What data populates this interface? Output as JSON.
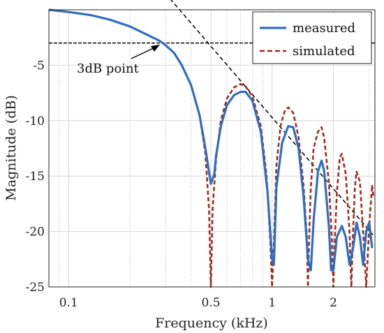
{
  "chart_data": {
    "type": "line",
    "xlabel": "Frequency (kHz)",
    "ylabel": "Magnitude (dB)",
    "xscale": "log",
    "xlim": [
      0.08,
      3.2
    ],
    "ylim": [
      -25,
      0
    ],
    "xticks": [
      {
        "value": 0.1,
        "label": "0.1"
      },
      {
        "value": 0.5,
        "label": "0.5"
      },
      {
        "value": 1,
        "label": "1"
      },
      {
        "value": 2,
        "label": "2"
      }
    ],
    "yticks": [
      {
        "value": -5,
        "label": "-5"
      },
      {
        "value": -10,
        "label": "-10"
      },
      {
        "value": -15,
        "label": "-15"
      },
      {
        "value": -20,
        "label": "-20"
      },
      {
        "value": -25,
        "label": "-25"
      }
    ],
    "grid": true,
    "legend": {
      "position": "top-right",
      "entries": [
        {
          "name": "measured",
          "color": "#2f6ec1",
          "style": "solid"
        },
        {
          "name": "simulated",
          "color": "#a02c1e",
          "style": "dashed"
        }
      ]
    },
    "series": [
      {
        "name": "measured",
        "color": "#2f6ec1",
        "style": "solid",
        "x": [
          0.08,
          0.1,
          0.13,
          0.16,
          0.2,
          0.24,
          0.28,
          0.3,
          0.33,
          0.36,
          0.4,
          0.44,
          0.47,
          0.5,
          0.52,
          0.53,
          0.56,
          0.6,
          0.65,
          0.7,
          0.74,
          0.8,
          0.88,
          0.95,
          1.0,
          1.02,
          1.05,
          1.12,
          1.2,
          1.27,
          1.35,
          1.43,
          1.5,
          1.55,
          1.6,
          1.68,
          1.75,
          1.8,
          1.9,
          1.95,
          2.0,
          2.08,
          2.2,
          2.3,
          2.4,
          2.5,
          2.6,
          2.7,
          2.8,
          2.9,
          3.0,
          3.1
        ],
        "y": [
          0.0,
          -0.2,
          -0.5,
          -0.9,
          -1.5,
          -2.2,
          -2.8,
          -3.2,
          -3.9,
          -5.0,
          -6.8,
          -9.5,
          -12.5,
          -15.7,
          -14.8,
          -13.2,
          -10.5,
          -8.6,
          -7.7,
          -7.4,
          -7.4,
          -8.2,
          -11.0,
          -16.5,
          -22.5,
          -23.0,
          -16.0,
          -12.0,
          -10.5,
          -10.6,
          -12.5,
          -17.0,
          -22.5,
          -23.5,
          -19.0,
          -14.6,
          -13.6,
          -14.5,
          -19.5,
          -23.5,
          -23.5,
          -20.5,
          -19.5,
          -20.5,
          -23.0,
          -21.5,
          -19.2,
          -20.5,
          -23.0,
          -20.0,
          -19.2,
          -21.5
        ]
      },
      {
        "name": "simulated",
        "color": "#a02c1e",
        "style": "dashed",
        "x": [
          0.08,
          0.1,
          0.13,
          0.16,
          0.2,
          0.24,
          0.28,
          0.3,
          0.33,
          0.36,
          0.4,
          0.44,
          0.47,
          0.49,
          0.5,
          0.51,
          0.53,
          0.56,
          0.6,
          0.65,
          0.7,
          0.74,
          0.8,
          0.88,
          0.94,
          0.98,
          1.0,
          1.02,
          1.05,
          1.1,
          1.15,
          1.2,
          1.27,
          1.35,
          1.43,
          1.48,
          1.5,
          1.52,
          1.55,
          1.6,
          1.68,
          1.75,
          1.8,
          1.9,
          1.97,
          2.0,
          2.03,
          2.08,
          2.15,
          2.2,
          2.3,
          2.4,
          2.45,
          2.5,
          2.55,
          2.6,
          2.7,
          2.8,
          2.9,
          3.0,
          3.1,
          3.15
        ],
        "y": [
          0.0,
          -0.2,
          -0.5,
          -0.9,
          -1.5,
          -2.2,
          -2.8,
          -3.2,
          -3.9,
          -5.0,
          -6.8,
          -9.5,
          -13.0,
          -18.0,
          -25.0,
          -18.0,
          -13.5,
          -10.0,
          -8.0,
          -7.0,
          -6.7,
          -6.9,
          -7.8,
          -10.5,
          -15.0,
          -21.0,
          -25.0,
          -21.0,
          -14.0,
          -10.5,
          -9.2,
          -8.8,
          -9.3,
          -11.5,
          -16.0,
          -20.5,
          -25.0,
          -20.5,
          -16.0,
          -12.5,
          -11.0,
          -10.6,
          -11.5,
          -15.5,
          -21.0,
          -25.0,
          -21.0,
          -16.5,
          -13.3,
          -13.0,
          -14.8,
          -20.0,
          -25.0,
          -20.0,
          -16.0,
          -14.6,
          -15.5,
          -20.0,
          -25.0,
          -19.5,
          -15.8,
          -17.0
        ]
      }
    ],
    "reference_lines": [
      {
        "kind": "horizontal",
        "y": -3,
        "style": "dashed",
        "color": "#000000"
      },
      {
        "kind": "sloped",
        "from": {
          "x": 0.315,
          "y": 1
        },
        "to": {
          "x": 3.2,
          "y": -20.5
        },
        "style": "dashed",
        "color": "#000000"
      }
    ],
    "annotations": [
      {
        "text": "3dB point",
        "target": {
          "x": 0.3,
          "y": -3
        }
      }
    ]
  }
}
